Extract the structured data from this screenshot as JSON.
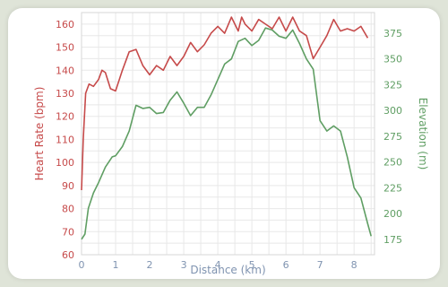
{
  "chart_data": {
    "type": "line",
    "title": "",
    "xlabel": "Distance (km)",
    "ylabel_left": "Heart Rate (bpm)",
    "ylabel_right": "Elevation (m)",
    "xlim": [
      0,
      8.6
    ],
    "ylim_left": [
      60,
      165
    ],
    "ylim_right": [
      160,
      395
    ],
    "x_ticks": [
      0,
      1,
      2,
      3,
      4,
      5,
      6,
      7,
      8
    ],
    "y_ticks_left": [
      60,
      70,
      80,
      90,
      100,
      110,
      120,
      130,
      140,
      150,
      160
    ],
    "y_ticks_right": [
      175,
      200,
      225,
      250,
      275,
      300,
      325,
      350,
      375
    ],
    "grid": true,
    "colors": {
      "heart_rate": "#c64a4a",
      "elevation": "#5f9e63",
      "grid": "#e8e8e8"
    },
    "series": [
      {
        "key": "heart_rate",
        "axis": "left",
        "x": [
          0,
          0.05,
          0.12,
          0.22,
          0.35,
          0.5,
          0.6,
          0.7,
          0.85,
          1.0,
          1.2,
          1.4,
          1.6,
          1.8,
          2.0,
          2.2,
          2.4,
          2.6,
          2.8,
          3.0,
          3.2,
          3.4,
          3.6,
          3.8,
          4.0,
          4.2,
          4.4,
          4.5,
          4.6,
          4.7,
          4.8,
          5.0,
          5.2,
          5.4,
          5.6,
          5.8,
          6.0,
          6.2,
          6.4,
          6.6,
          6.7,
          6.8,
          7.0,
          7.2,
          7.4,
          7.6,
          7.8,
          8.0,
          8.2,
          8.4
        ],
        "values": [
          88,
          110,
          130,
          134,
          133,
          136,
          140,
          139,
          132,
          131,
          140,
          148,
          149,
          142,
          138,
          142,
          140,
          146,
          142,
          146,
          152,
          148,
          151,
          156,
          159,
          156,
          163,
          160,
          157,
          163,
          160,
          157,
          162,
          160,
          158,
          163,
          157,
          163,
          157,
          155,
          150,
          145,
          150,
          155,
          162,
          157,
          158,
          157,
          159,
          154
        ]
      },
      {
        "key": "elevation",
        "axis": "right",
        "x": [
          0,
          0.1,
          0.2,
          0.35,
          0.5,
          0.7,
          0.9,
          1.0,
          1.2,
          1.4,
          1.6,
          1.8,
          2.0,
          2.2,
          2.4,
          2.6,
          2.8,
          3.0,
          3.2,
          3.4,
          3.6,
          3.8,
          4.0,
          4.2,
          4.4,
          4.6,
          4.8,
          5.0,
          5.2,
          5.4,
          5.6,
          5.8,
          6.0,
          6.2,
          6.4,
          6.6,
          6.8,
          7.0,
          7.2,
          7.4,
          7.6,
          7.8,
          8.0,
          8.2,
          8.4,
          8.5
        ],
        "values": [
          175,
          180,
          205,
          220,
          230,
          245,
          255,
          256,
          265,
          280,
          305,
          302,
          303,
          297,
          298,
          310,
          318,
          307,
          295,
          303,
          303,
          315,
          330,
          345,
          350,
          367,
          370,
          363,
          368,
          380,
          378,
          372,
          370,
          378,
          365,
          350,
          340,
          290,
          280,
          285,
          280,
          255,
          225,
          215,
          190,
          178
        ]
      }
    ]
  }
}
